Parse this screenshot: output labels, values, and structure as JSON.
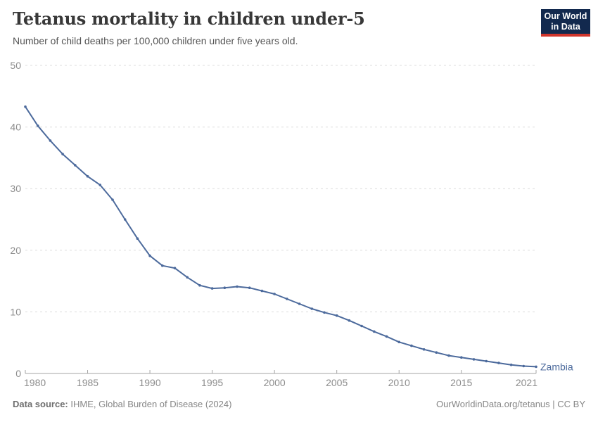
{
  "header": {
    "title": "Tetanus mortality in children under-5",
    "subtitle": "Number of child deaths per 100,000 children under five years old.",
    "logo": {
      "line1": "Our World",
      "line2": "in Data"
    }
  },
  "footer": {
    "source_label": "Data source:",
    "source_text": " IHME, Global Burden of Disease (2024)",
    "credit": "OurWorldinData.org/tetanus | CC BY"
  },
  "colors": {
    "series_blue": "#4c6a9c",
    "grid": "#dcdcdc",
    "axis": "#a5a5a5",
    "tick_label": "#8c8c8c",
    "logo_navy": "#12294e",
    "logo_red": "#d0352c"
  },
  "chart_data": {
    "type": "line",
    "title": "Tetanus mortality in children under-5",
    "subtitle": "Number of child deaths per 100,000 children under five years old.",
    "xlabel": "",
    "ylabel": "",
    "ylim": [
      0,
      50
    ],
    "yticks": [
      0,
      10,
      20,
      30,
      40,
      50
    ],
    "xticks": [
      1980,
      1985,
      1990,
      1995,
      2000,
      2005,
      2010,
      2015,
      2021
    ],
    "grid": "horizontal-dashed",
    "legend_position": "end-of-line",
    "x": [
      1980,
      1981,
      1982,
      1983,
      1984,
      1985,
      1986,
      1987,
      1988,
      1989,
      1990,
      1991,
      1992,
      1993,
      1994,
      1995,
      1996,
      1997,
      1998,
      1999,
      2000,
      2001,
      2002,
      2003,
      2004,
      2005,
      2006,
      2007,
      2008,
      2009,
      2010,
      2011,
      2012,
      2013,
      2014,
      2015,
      2016,
      2017,
      2018,
      2019,
      2020,
      2021
    ],
    "series": [
      {
        "name": "Zambia",
        "color": "#4c6a9c",
        "values": [
          43.3,
          40.2,
          37.8,
          35.6,
          33.8,
          32.0,
          30.6,
          28.2,
          25.0,
          21.9,
          19.1,
          17.5,
          17.1,
          15.6,
          14.3,
          13.8,
          13.9,
          14.1,
          13.9,
          13.4,
          12.9,
          12.1,
          11.3,
          10.5,
          9.9,
          9.4,
          8.6,
          7.7,
          6.8,
          6.0,
          5.1,
          4.5,
          3.9,
          3.4,
          2.9,
          2.6,
          2.3,
          2.0,
          1.7,
          1.4,
          1.2,
          1.1
        ]
      }
    ]
  }
}
